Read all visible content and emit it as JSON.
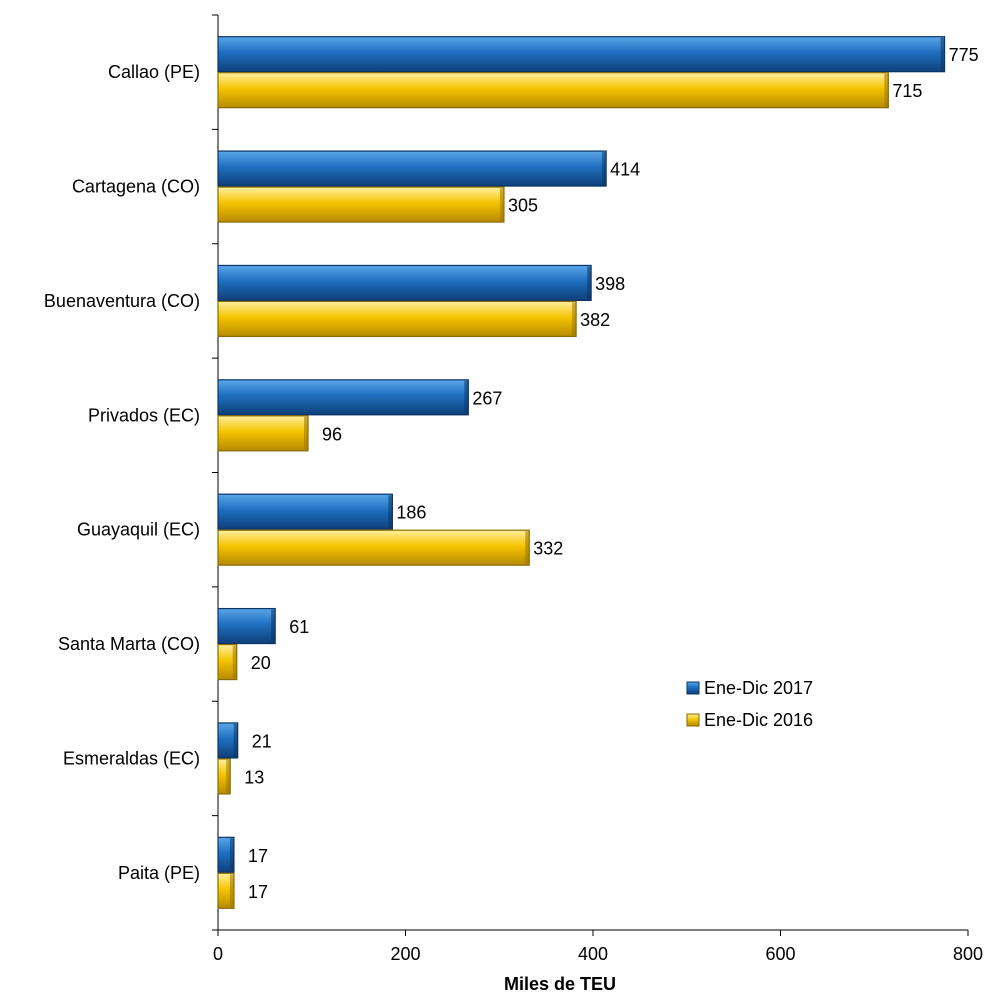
{
  "chart_data": {
    "type": "bar",
    "orientation": "horizontal",
    "categories": [
      "Callao (PE)",
      "Cartagena (CO)",
      "Buenaventura (CO)",
      "Privados (EC)",
      "Guayaquil (EC)",
      "Santa Marta (CO)",
      "Esmeraldas (EC)",
      "Paita (PE)"
    ],
    "series": [
      {
        "name": "Ene-Dic 2017",
        "values": [
          775,
          414,
          398,
          267,
          186,
          61,
          21,
          17
        ],
        "color": "#1f6fc0"
      },
      {
        "name": "Ene-Dic 2016",
        "values": [
          715,
          305,
          382,
          96,
          332,
          20,
          13,
          17
        ],
        "color": "#f5c400"
      }
    ],
    "xlabel": "Miles de TEU",
    "xlim": [
      0,
      800
    ],
    "xticks": [
      0,
      200,
      400,
      600,
      800
    ],
    "grid": false,
    "legend_position": "right"
  }
}
